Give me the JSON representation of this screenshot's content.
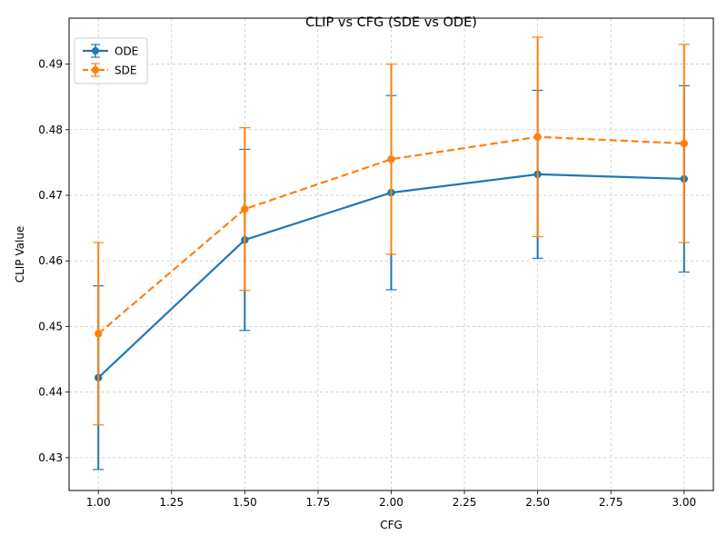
{
  "chart_data": {
    "type": "line",
    "title": "CLIP vs CFG (SDE vs ODE)",
    "xlabel": "CFG",
    "ylabel": "CLIP Value",
    "xlim": [
      0.9,
      3.1
    ],
    "ylim": [
      0.425,
      0.497
    ],
    "xticks": [
      "1.00",
      "1.25",
      "1.50",
      "1.75",
      "2.00",
      "2.25",
      "2.50",
      "2.75",
      "3.00"
    ],
    "yticks": [
      "0.43",
      "0.44",
      "0.45",
      "0.46",
      "0.47",
      "0.48",
      "0.49"
    ],
    "grid": true,
    "legend_position": "top-left",
    "x": [
      1.0,
      1.5,
      2.0,
      2.5,
      3.0
    ],
    "series": [
      {
        "name": "ODE",
        "color": "#1f77b4",
        "line_style": "solid",
        "values": [
          0.4422,
          0.4632,
          0.4704,
          0.4732,
          0.4725
        ],
        "error": [
          0.014,
          0.0138,
          0.0148,
          0.0128,
          0.0142
        ]
      },
      {
        "name": "SDE",
        "color": "#ff7f0e",
        "line_style": "dashed",
        "values": [
          0.4489,
          0.4679,
          0.4755,
          0.4789,
          0.4779
        ],
        "error": [
          0.0139,
          0.0124,
          0.0145,
          0.0152,
          0.0151
        ]
      }
    ]
  }
}
